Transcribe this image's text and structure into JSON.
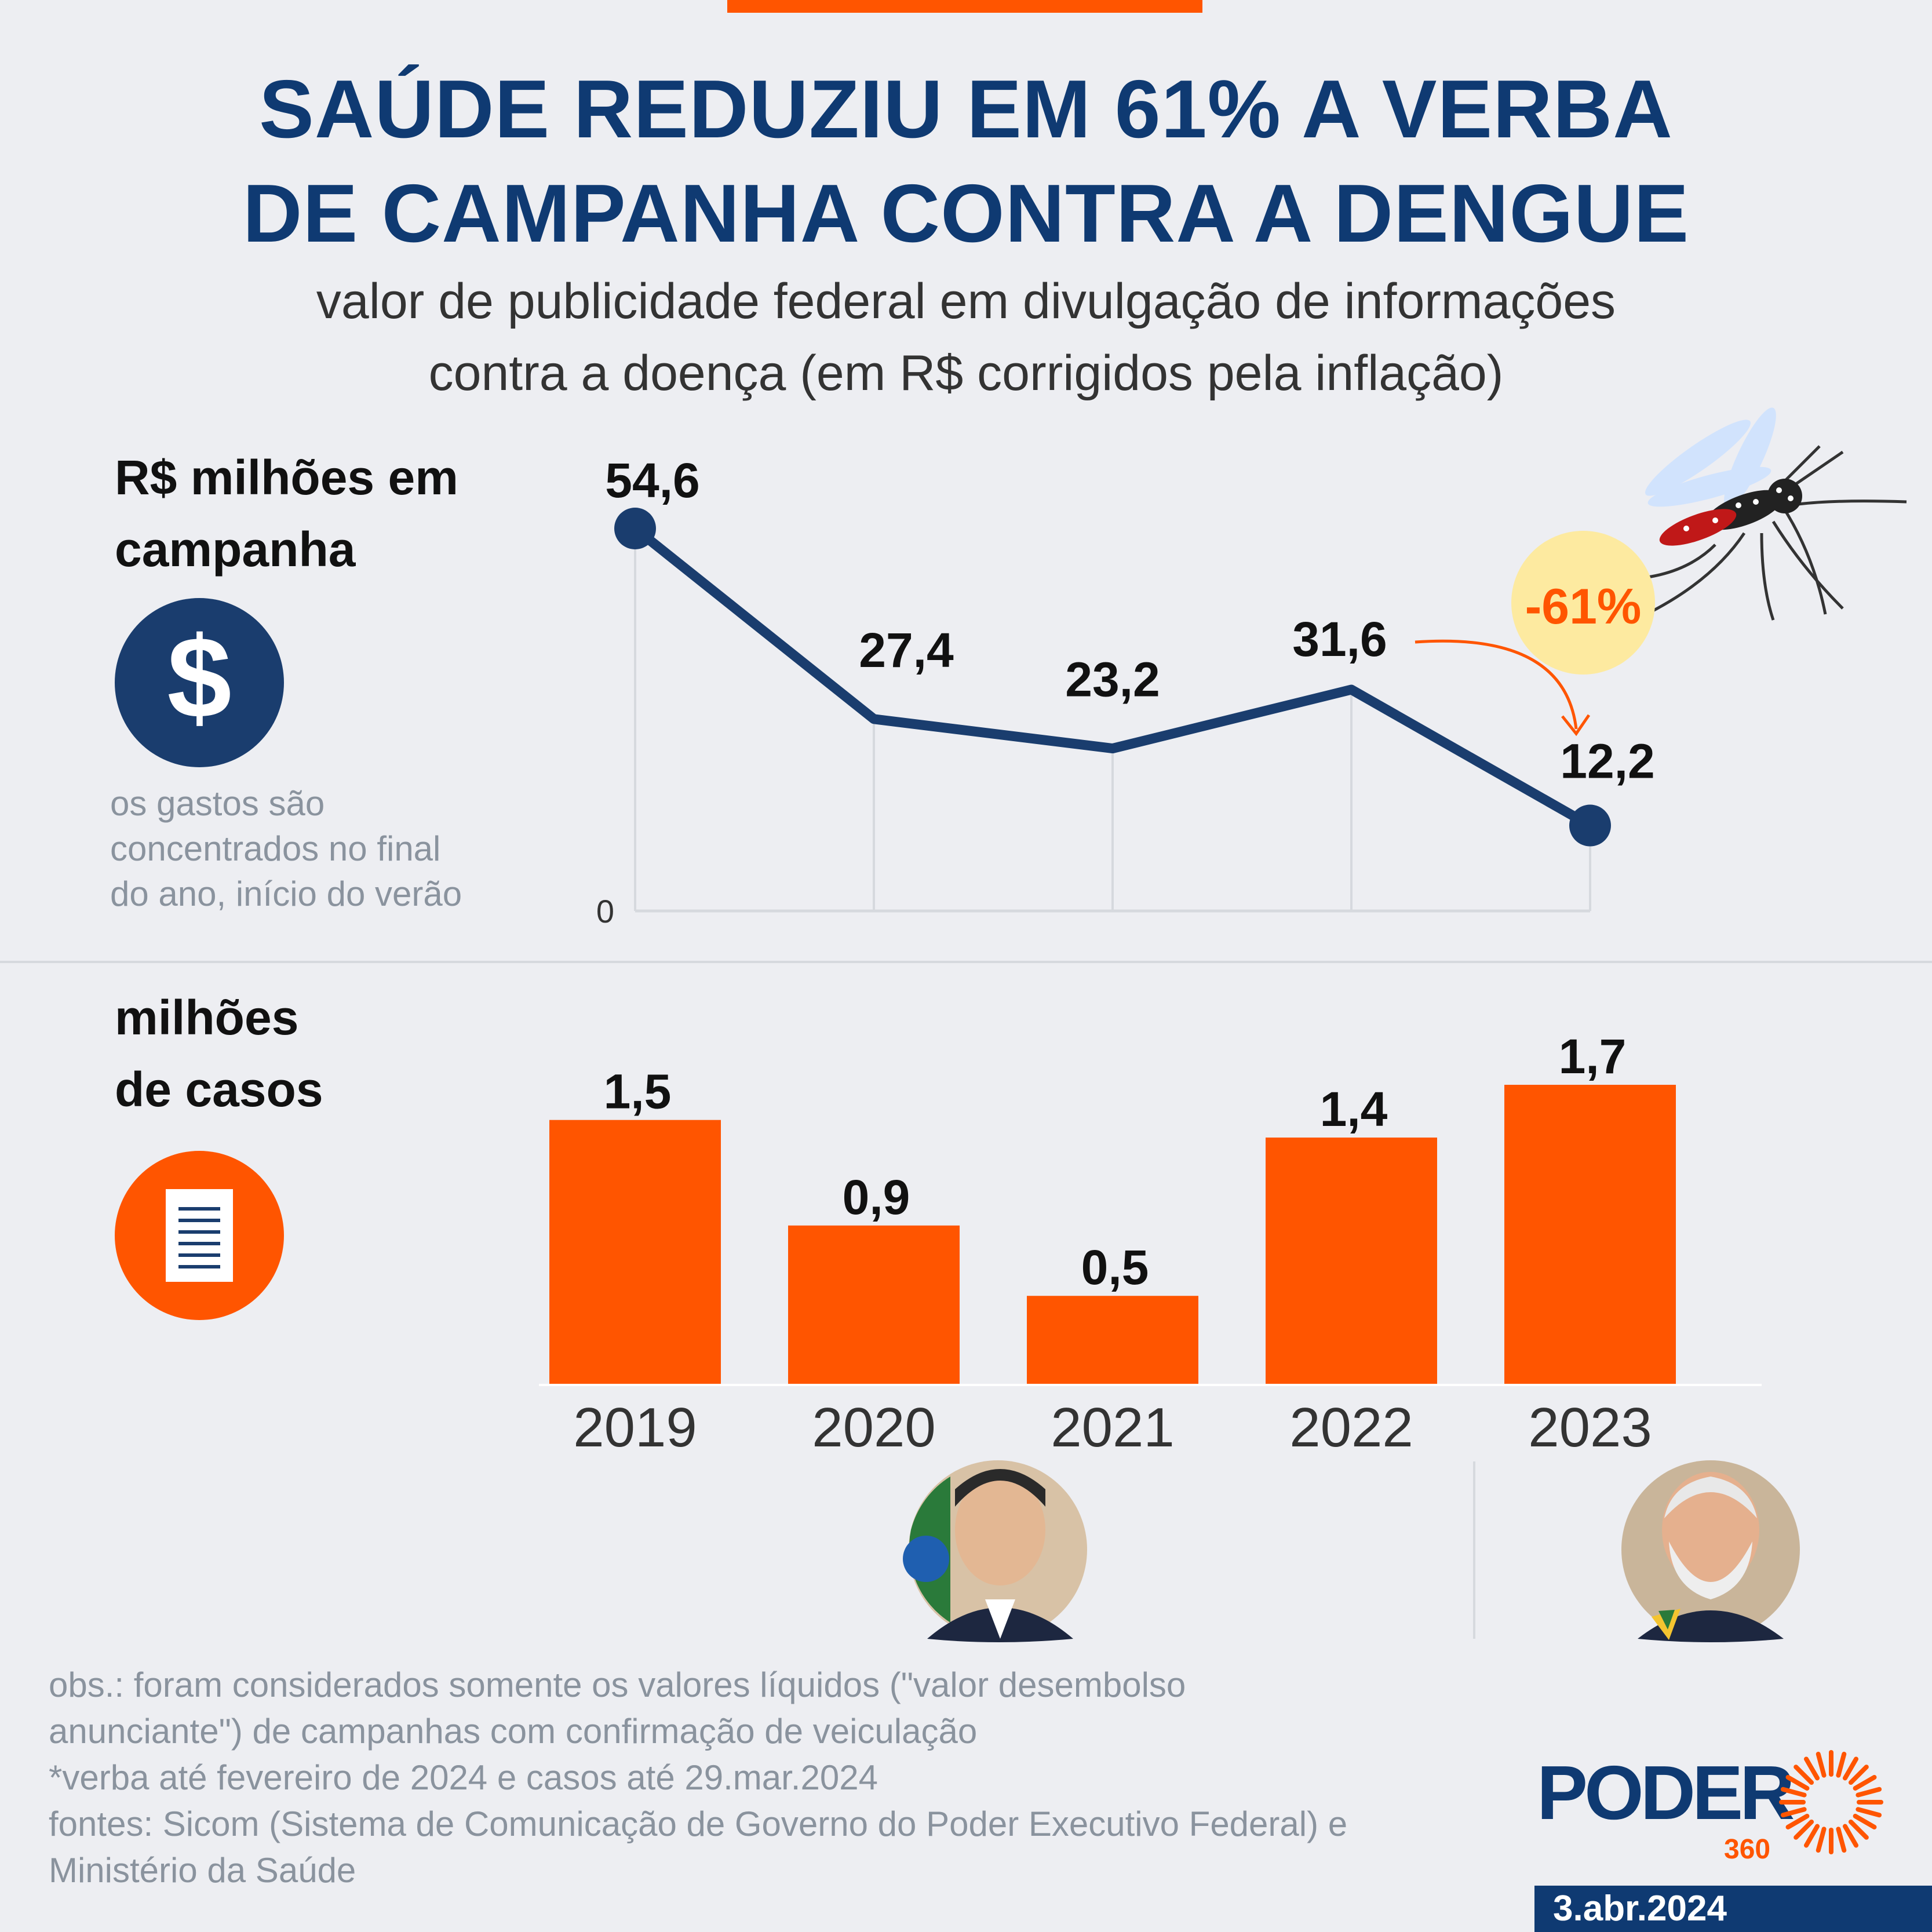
{
  "header": {
    "title_line1": "SAÚDE REDUZIU EM 61% A VERBA",
    "title_line2": "DE CAMPANHA CONTRA A DENGUE",
    "subtitle_line1": "valor de publicidade federal em divulgação de informações",
    "subtitle_line2": "contra a doença (em R$ corrigidos pela inflação)"
  },
  "campaign_section": {
    "label_line1": "R$ milhões em",
    "label_line2": "campanha",
    "icon": "dollar-icon",
    "note_line1": "os gastos são",
    "note_line2": "concentrados no final",
    "note_line3": "do ano, início do verão",
    "change_badge": "-61%"
  },
  "cases_section": {
    "label_line1": "milhões",
    "label_line2": "de casos",
    "icon": "document-icon"
  },
  "leaders": {
    "left_icon": "bolsonaro-portrait",
    "right_icon": "lula-portrait"
  },
  "footer": {
    "obs_line1": "obs.: foram considerados somente os valores líquidos (\"valor desembolso",
    "obs_line2": "anunciante\") de campanhas com confirmação de veiculação",
    "obs_line3": "*verba até fevereiro de 2024 e casos até 29.mar.2024",
    "obs_line4": "fontes: Sicom (Sistema de Comunicação de Governo do Poder Executivo Federal) e",
    "obs_line5": "Ministério da Saúde",
    "brand": "PODER",
    "brand_number": "360",
    "date": "3.abr.2024"
  },
  "colors": {
    "navy": "#1a3d6e",
    "orange": "#ff5500",
    "badge_bg": "#fdeaa0",
    "background": "#edeef2"
  },
  "chart_data": [
    {
      "type": "line",
      "title": "R$ milhões em campanha",
      "x": [
        "2019",
        "2020",
        "2021",
        "2022",
        "2023"
      ],
      "values": [
        54.6,
        27.4,
        23.2,
        31.6,
        12.2
      ],
      "labels": [
        "54,6",
        "27,4",
        "23,2",
        "31,6",
        "12,2"
      ],
      "y_baseline_label": "0",
      "ylim": [
        0,
        54.6
      ]
    },
    {
      "type": "bar",
      "title": "milhões de casos",
      "categories": [
        "2019",
        "2020",
        "2021",
        "2022",
        "2023"
      ],
      "values": [
        1.5,
        0.9,
        0.5,
        1.4,
        1.7
      ],
      "labels": [
        "1,5",
        "0,9",
        "0,5",
        "1,4",
        "1,7"
      ],
      "ylim": [
        0,
        1.7
      ]
    }
  ]
}
